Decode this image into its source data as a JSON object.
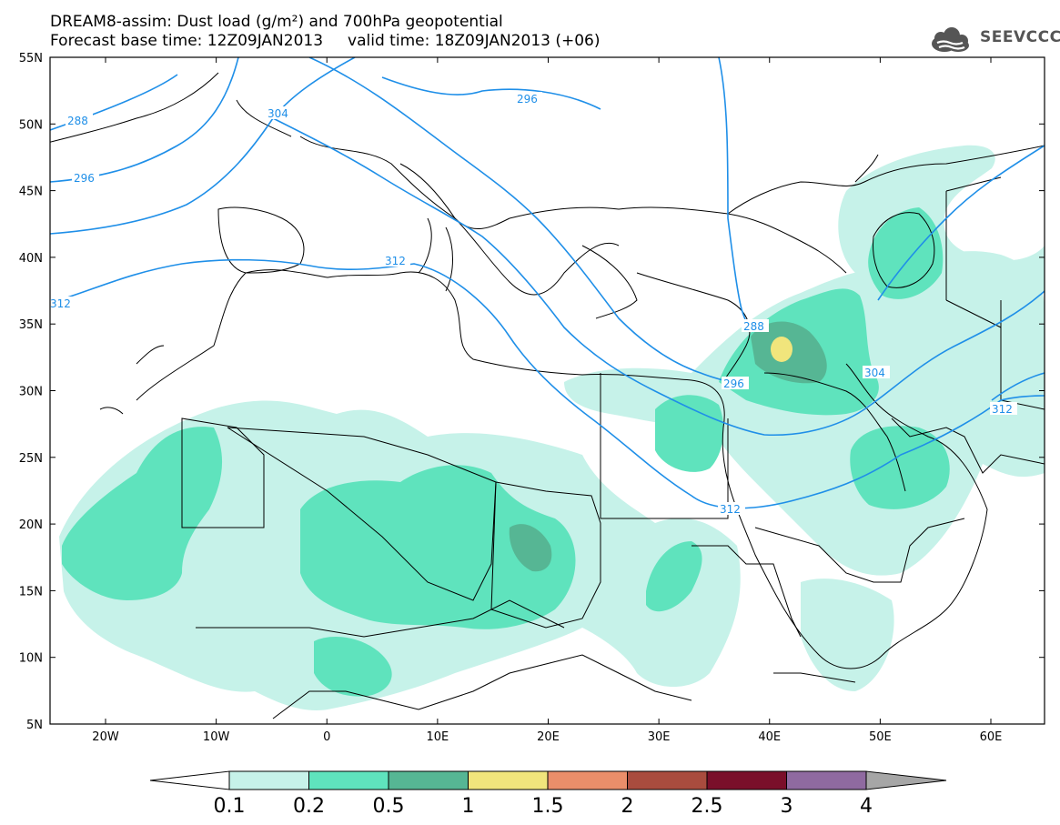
{
  "title": {
    "line1": "DREAM8-assim: Dust load (g/m²) and 700hPa geopotential",
    "line2": "Forecast base time: 12Z09JAN2013     valid time: 18Z09JAN2013 (+06)"
  },
  "logo": {
    "text": "SEEVCCC",
    "icon": "cloud-icon"
  },
  "axes": {
    "lat_labels": [
      "55N",
      "50N",
      "45N",
      "40N",
      "35N",
      "30N",
      "25N",
      "20N",
      "15N",
      "10N",
      "5N"
    ],
    "lon_labels": [
      "20W",
      "10W",
      "0",
      "10E",
      "20E",
      "30E",
      "40E",
      "50E",
      "60E"
    ]
  },
  "contours": {
    "color": "#1f8fe8",
    "labels": [
      "288",
      "296",
      "304",
      "312",
      "288",
      "296",
      "304",
      "312",
      "296",
      "304",
      "312"
    ]
  },
  "colorbar": {
    "ticks": [
      "0.1",
      "0.2",
      "0.5",
      "1",
      "1.5",
      "2",
      "2.5",
      "3",
      "4"
    ],
    "colors": [
      "#c6f2e9",
      "#5fe3bd",
      "#56b694",
      "#f1e57c",
      "#ea8e6a",
      "#a94c3e",
      "#7a0f2a",
      "#8f6aa0",
      "#a6a6a6"
    ]
  }
}
